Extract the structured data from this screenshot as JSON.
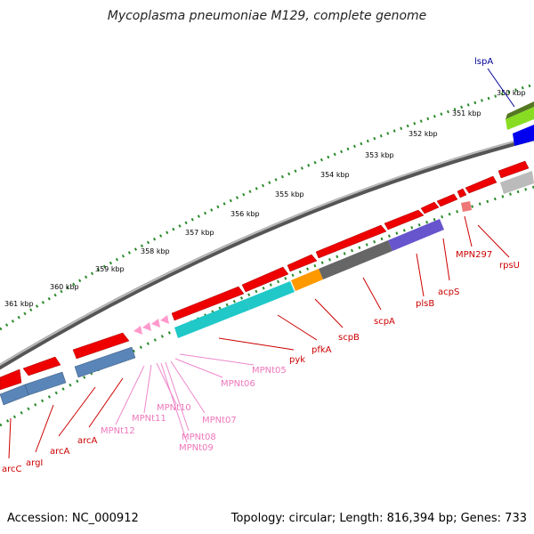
{
  "header": {
    "title": "Mycoplasma pneumoniae M129, complete genome"
  },
  "footer": {
    "accession": "Accession: NC_000912",
    "summary": "Topology: circular; Length: 816,394 bp; Genes: 733"
  },
  "map": {
    "ticks": [
      "350 kbp",
      "351 kbp",
      "352 kbp",
      "353 kbp",
      "354 kbp",
      "355 kbp",
      "356 kbp",
      "357 kbp",
      "358 kbp",
      "359 kbp",
      "360 kbp",
      "361 kbp"
    ],
    "labels": {
      "lspA": "lspA",
      "rpsU": "rpsU",
      "MPN297": "MPN297",
      "acpS": "acpS",
      "plsB": "plsB",
      "scpA": "scpA",
      "scpB": "scpB",
      "pfkA": "pfkA",
      "pyk": "pyk",
      "MPNt05": "MPNt05",
      "MPNt06": "MPNt06",
      "MPNt07": "MPNt07",
      "MPNt08": "MPNt08",
      "MPNt09": "MPNt09",
      "MPNt10": "MPNt10",
      "MPNt11": "MPNt11",
      "MPNt12": "MPNt12",
      "arcA1": "arcA",
      "arcA2": "arcA",
      "argI": "argI",
      "arcC": "arcC"
    },
    "colors": {
      "backbone": "#8a8a8a",
      "tick": "#2a8a2a",
      "gene_forward": "#ee0000",
      "gene_reverse": "#5a85b8",
      "trna": "#ff99cc",
      "cds_cyan": "#20c8c8",
      "cds_orange": "#ff9900",
      "cds_gray": "#666666",
      "cds_purple": "#6655cc",
      "cds_blue": "#0000ee",
      "cds_lime": "#88dd22",
      "label_gene": "#cc0000",
      "label_trna": "#ee77bb",
      "label_lspA": "#000099"
    }
  }
}
